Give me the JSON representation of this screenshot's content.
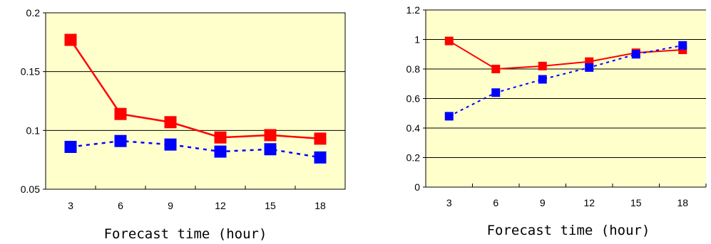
{
  "colors": {
    "plot_background": "#FFFFCC",
    "red_series": "#FF0000",
    "blue_series": "#0000FF",
    "gridline": "#000000"
  },
  "chart_data": [
    {
      "type": "line",
      "categories": [
        "3",
        "6",
        "9",
        "12",
        "15",
        "18"
      ],
      "xlabel": "Forecast time (hour)",
      "ylabel": "",
      "ylim": [
        0.05,
        0.2
      ],
      "yticks": [
        "0.05",
        "0.1",
        "0.15",
        "0.2"
      ],
      "grid": "horizontal",
      "legend": "none",
      "series": [
        {
          "color": "#FF0000",
          "style": "solid",
          "marker": "square",
          "values": [
            0.177,
            0.114,
            0.107,
            0.094,
            0.096,
            0.093
          ]
        },
        {
          "color": "#0000FF",
          "style": "dotted",
          "marker": "square",
          "values": [
            0.086,
            0.091,
            0.088,
            0.082,
            0.084,
            0.077
          ]
        }
      ]
    },
    {
      "type": "line",
      "categories": [
        "3",
        "6",
        "9",
        "12",
        "15",
        "18"
      ],
      "xlabel": "Forecast time (hour)",
      "ylabel": "",
      "ylim": [
        0,
        1.2
      ],
      "yticks": [
        "0",
        "0.2",
        "0.4",
        "0.6",
        "0.8",
        "1",
        "1.2"
      ],
      "grid": "horizontal",
      "legend": "none",
      "series": [
        {
          "color": "#FF0000",
          "style": "solid",
          "marker": "square",
          "values": [
            0.99,
            0.8,
            0.82,
            0.85,
            0.91,
            0.93
          ]
        },
        {
          "color": "#0000FF",
          "style": "dotted",
          "marker": "square",
          "values": [
            0.48,
            0.64,
            0.73,
            0.81,
            0.9,
            0.96
          ]
        }
      ]
    }
  ]
}
